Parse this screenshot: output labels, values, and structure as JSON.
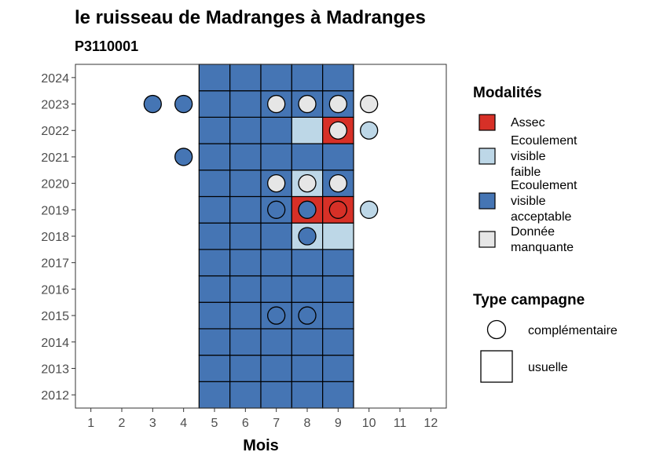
{
  "chart_data": {
    "type": "heatmap",
    "title": "le ruisseau de Madranges à Madranges",
    "subtitle": "P3110001",
    "xlabel": "Mois",
    "ylabel": "",
    "x_ticks": [
      1,
      2,
      3,
      4,
      5,
      6,
      7,
      8,
      9,
      10,
      11,
      12
    ],
    "y_ticks": [
      2012,
      2013,
      2014,
      2015,
      2016,
      2017,
      2018,
      2019,
      2020,
      2021,
      2022,
      2023,
      2024
    ],
    "xlim": [
      0.5,
      12.5
    ],
    "ylim": [
      2011.5,
      2024.5
    ],
    "grid": false,
    "colors": {
      "assec": "#d73027",
      "faible": "#bdd7e7",
      "acceptable": "#4575b4",
      "manquante": "#e6e6e6"
    },
    "legend_modalites": {
      "title": "Modalités",
      "position": "right",
      "items": [
        {
          "key": "assec",
          "label_lines": [
            "Assec"
          ]
        },
        {
          "key": "faible",
          "label_lines": [
            "Ecoulement",
            "visible",
            "faible"
          ]
        },
        {
          "key": "acceptable",
          "label_lines": [
            "Ecoulement",
            "visible",
            "acceptable"
          ]
        },
        {
          "key": "manquante",
          "label_lines": [
            "Donnée",
            "manquante"
          ]
        }
      ]
    },
    "legend_campagne": {
      "title": "Type campagne",
      "position": "right",
      "items": [
        {
          "shape": "circle",
          "label": "complémentaire"
        },
        {
          "shape": "square",
          "label": "usuelle"
        }
      ]
    },
    "usuelle_tiles": [
      {
        "year": 2012,
        "month": 5,
        "status": "acceptable"
      },
      {
        "year": 2012,
        "month": 6,
        "status": "acceptable"
      },
      {
        "year": 2012,
        "month": 7,
        "status": "acceptable"
      },
      {
        "year": 2012,
        "month": 8,
        "status": "acceptable"
      },
      {
        "year": 2012,
        "month": 9,
        "status": "acceptable"
      },
      {
        "year": 2013,
        "month": 5,
        "status": "acceptable"
      },
      {
        "year": 2013,
        "month": 6,
        "status": "acceptable"
      },
      {
        "year": 2013,
        "month": 7,
        "status": "acceptable"
      },
      {
        "year": 2013,
        "month": 8,
        "status": "acceptable"
      },
      {
        "year": 2013,
        "month": 9,
        "status": "acceptable"
      },
      {
        "year": 2014,
        "month": 5,
        "status": "acceptable"
      },
      {
        "year": 2014,
        "month": 6,
        "status": "acceptable"
      },
      {
        "year": 2014,
        "month": 7,
        "status": "acceptable"
      },
      {
        "year": 2014,
        "month": 8,
        "status": "acceptable"
      },
      {
        "year": 2014,
        "month": 9,
        "status": "acceptable"
      },
      {
        "year": 2015,
        "month": 5,
        "status": "acceptable"
      },
      {
        "year": 2015,
        "month": 6,
        "status": "acceptable"
      },
      {
        "year": 2015,
        "month": 7,
        "status": "acceptable"
      },
      {
        "year": 2015,
        "month": 8,
        "status": "acceptable"
      },
      {
        "year": 2015,
        "month": 9,
        "status": "acceptable"
      },
      {
        "year": 2016,
        "month": 5,
        "status": "acceptable"
      },
      {
        "year": 2016,
        "month": 6,
        "status": "acceptable"
      },
      {
        "year": 2016,
        "month": 7,
        "status": "acceptable"
      },
      {
        "year": 2016,
        "month": 8,
        "status": "acceptable"
      },
      {
        "year": 2016,
        "month": 9,
        "status": "acceptable"
      },
      {
        "year": 2017,
        "month": 5,
        "status": "acceptable"
      },
      {
        "year": 2017,
        "month": 6,
        "status": "acceptable"
      },
      {
        "year": 2017,
        "month": 7,
        "status": "acceptable"
      },
      {
        "year": 2017,
        "month": 8,
        "status": "acceptable"
      },
      {
        "year": 2017,
        "month": 9,
        "status": "acceptable"
      },
      {
        "year": 2018,
        "month": 5,
        "status": "acceptable"
      },
      {
        "year": 2018,
        "month": 6,
        "status": "acceptable"
      },
      {
        "year": 2018,
        "month": 7,
        "status": "acceptable"
      },
      {
        "year": 2018,
        "month": 8,
        "status": "faible"
      },
      {
        "year": 2018,
        "month": 9,
        "status": "faible"
      },
      {
        "year": 2019,
        "month": 5,
        "status": "acceptable"
      },
      {
        "year": 2019,
        "month": 6,
        "status": "acceptable"
      },
      {
        "year": 2019,
        "month": 7,
        "status": "acceptable"
      },
      {
        "year": 2019,
        "month": 8,
        "status": "assec"
      },
      {
        "year": 2019,
        "month": 9,
        "status": "assec"
      },
      {
        "year": 2020,
        "month": 5,
        "status": "acceptable"
      },
      {
        "year": 2020,
        "month": 6,
        "status": "acceptable"
      },
      {
        "year": 2020,
        "month": 7,
        "status": "acceptable"
      },
      {
        "year": 2020,
        "month": 8,
        "status": "faible"
      },
      {
        "year": 2020,
        "month": 9,
        "status": "acceptable"
      },
      {
        "year": 2021,
        "month": 5,
        "status": "acceptable"
      },
      {
        "year": 2021,
        "month": 6,
        "status": "acceptable"
      },
      {
        "year": 2021,
        "month": 7,
        "status": "acceptable"
      },
      {
        "year": 2021,
        "month": 8,
        "status": "acceptable"
      },
      {
        "year": 2021,
        "month": 9,
        "status": "acceptable"
      },
      {
        "year": 2022,
        "month": 5,
        "status": "acceptable"
      },
      {
        "year": 2022,
        "month": 6,
        "status": "acceptable"
      },
      {
        "year": 2022,
        "month": 7,
        "status": "acceptable"
      },
      {
        "year": 2022,
        "month": 8,
        "status": "faible"
      },
      {
        "year": 2022,
        "month": 9,
        "status": "assec"
      },
      {
        "year": 2023,
        "month": 5,
        "status": "acceptable"
      },
      {
        "year": 2023,
        "month": 6,
        "status": "acceptable"
      },
      {
        "year": 2023,
        "month": 7,
        "status": "acceptable"
      },
      {
        "year": 2023,
        "month": 8,
        "status": "acceptable"
      },
      {
        "year": 2023,
        "month": 9,
        "status": "acceptable"
      },
      {
        "year": 2024,
        "month": 5,
        "status": "acceptable"
      },
      {
        "year": 2024,
        "month": 6,
        "status": "acceptable"
      },
      {
        "year": 2024,
        "month": 7,
        "status": "acceptable"
      },
      {
        "year": 2024,
        "month": 8,
        "status": "acceptable"
      },
      {
        "year": 2024,
        "month": 9,
        "status": "acceptable"
      }
    ],
    "complementaire_points": [
      {
        "year": 2023,
        "month": 3,
        "status": "acceptable"
      },
      {
        "year": 2023,
        "month": 4,
        "status": "acceptable"
      },
      {
        "year": 2023,
        "month": 7,
        "status": "manquante"
      },
      {
        "year": 2023,
        "month": 8,
        "status": "manquante"
      },
      {
        "year": 2023,
        "month": 9,
        "status": "manquante"
      },
      {
        "year": 2023,
        "month": 10,
        "status": "manquante"
      },
      {
        "year": 2022,
        "month": 9,
        "status": "manquante"
      },
      {
        "year": 2022,
        "month": 10,
        "status": "faible"
      },
      {
        "year": 2021,
        "month": 4,
        "status": "acceptable"
      },
      {
        "year": 2020,
        "month": 7,
        "status": "manquante"
      },
      {
        "year": 2020,
        "month": 8,
        "status": "manquante"
      },
      {
        "year": 2020,
        "month": 9,
        "status": "manquante"
      },
      {
        "year": 2019,
        "month": 7,
        "status": "acceptable"
      },
      {
        "year": 2019,
        "month": 8,
        "status": "acceptable"
      },
      {
        "year": 2019,
        "month": 9,
        "status": "assec"
      },
      {
        "year": 2019,
        "month": 10,
        "status": "faible"
      },
      {
        "year": 2018,
        "month": 8,
        "status": "acceptable"
      },
      {
        "year": 2015,
        "month": 7,
        "status": "acceptable"
      },
      {
        "year": 2015,
        "month": 8,
        "status": "acceptable"
      }
    ]
  }
}
